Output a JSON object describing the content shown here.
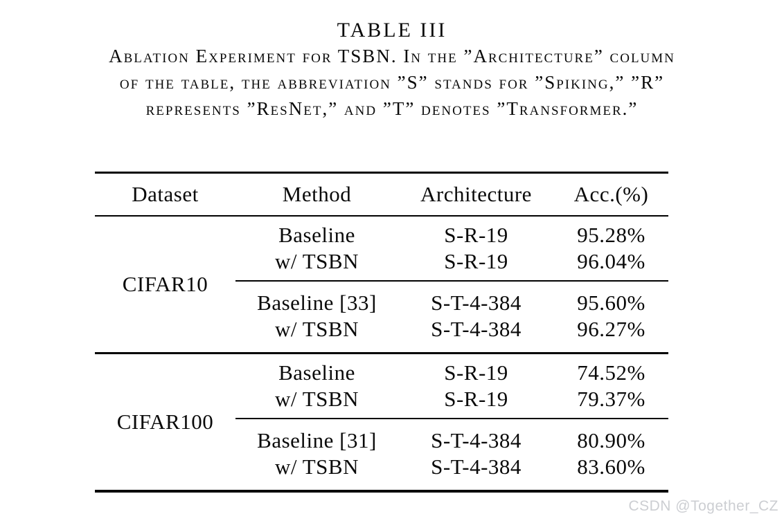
{
  "caption": {
    "title": "TABLE III",
    "line1": "Ablation Experiment for TSBN. In the ”Architecture” column",
    "line2": "of the table, the abbreviation ”S” stands for ”Spiking,” ”R”",
    "line3": "represents ”ResNet,” and ”T” denotes ”Transformer.”"
  },
  "table": {
    "headers": [
      "Dataset",
      "Method",
      "Architecture",
      "Acc.(%)"
    ],
    "groups": [
      {
        "dataset": "CIFAR10",
        "subgroups": [
          {
            "rows": [
              [
                "Baseline",
                "S-R-19",
                "95.28%"
              ],
              [
                "w/ TSBN",
                "S-R-19",
                "96.04%"
              ]
            ]
          },
          {
            "rows": [
              [
                "Baseline [33]",
                "S-T-4-384",
                "95.60%"
              ],
              [
                "w/ TSBN",
                "S-T-4-384",
                "96.27%"
              ]
            ]
          }
        ]
      },
      {
        "dataset": "CIFAR100",
        "subgroups": [
          {
            "rows": [
              [
                "Baseline",
                "S-R-19",
                "74.52%"
              ],
              [
                "w/ TSBN",
                "S-R-19",
                "79.37%"
              ]
            ]
          },
          {
            "rows": [
              [
                "Baseline [31]",
                "S-T-4-384",
                "80.90%"
              ],
              [
                "w/ TSBN",
                "S-T-4-384",
                "83.60%"
              ]
            ]
          }
        ]
      }
    ]
  },
  "watermark": "CSDN @Together_CZ"
}
